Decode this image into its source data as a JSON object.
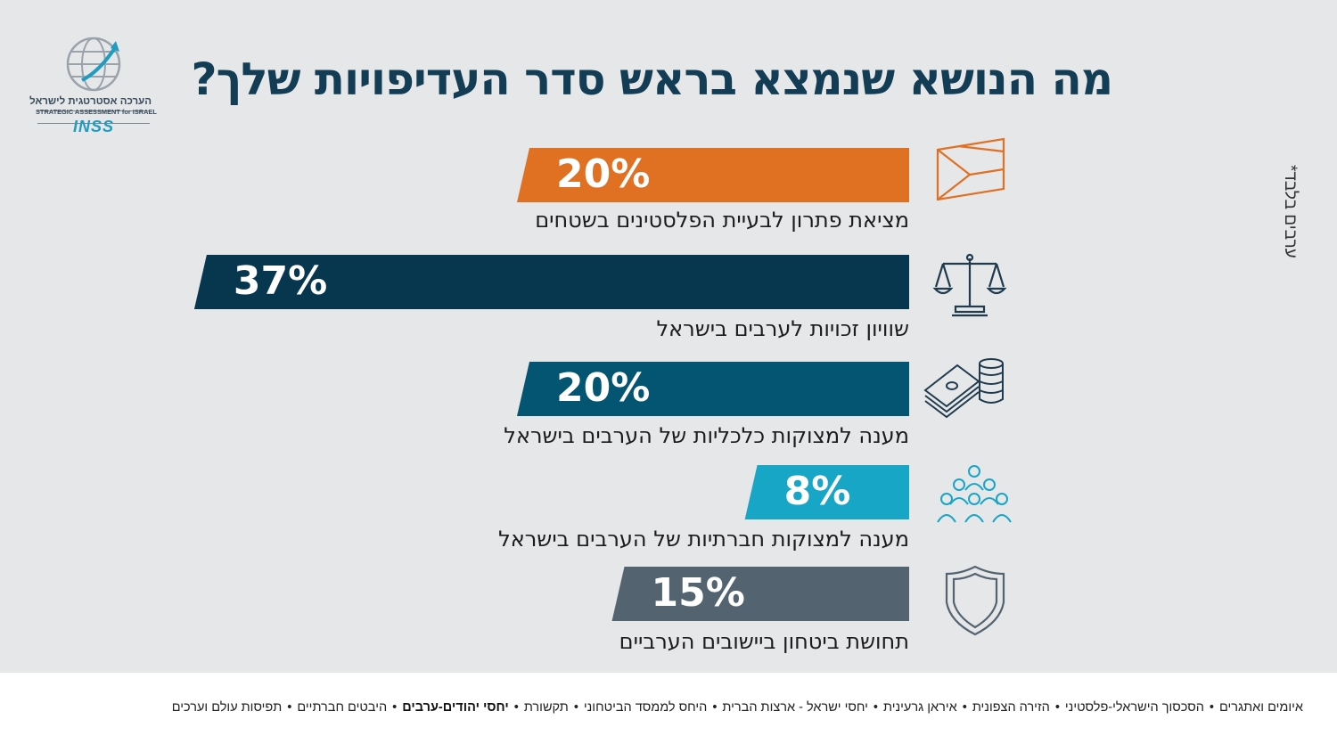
{
  "title": "מה הנושא שנמצא בראש סדר העדיפויות שלך?",
  "side_note": "ערבים בלבד*",
  "logo": {
    "line1": "הערכה אסטרטגית לישראל",
    "line2": "STRATEGIC ASSESSMENT for ISRAEL",
    "brand": "INSS"
  },
  "chart_data": {
    "type": "bar",
    "orientation": "horizontal",
    "title": "מה הנושא שנמצא בראש סדר העדיפויות שלך?",
    "categories": [
      "מציאת פתרון לבעיית הפלסטינים בשטחים",
      "שוויון זכויות לערבים בישראל",
      "מענה למצוקות כלכליות של הערבים בישראל",
      "מענה למצוקות חברתיות של הערבים בישראל",
      "תחושת ביטחון ביישובים הערביים"
    ],
    "values": [
      20,
      37,
      20,
      8,
      15
    ],
    "value_labels": [
      "20%",
      "37%",
      "20%",
      "8%",
      "15%"
    ],
    "colors": [
      "#e07022",
      "#07364f",
      "#045572",
      "#18a6c7",
      "#536470"
    ],
    "icons": [
      "palestinian-flag-icon",
      "scales-of-justice-icon",
      "money-coins-icon",
      "people-group-icon",
      "shield-icon"
    ],
    "xlabel": "",
    "ylabel": ""
  },
  "footer": {
    "topics": [
      {
        "label": "איומים ואתגרים",
        "bold": false
      },
      {
        "label": "הסכסוך הישראלי-פלסטיני",
        "bold": false
      },
      {
        "label": "הזירה הצפונית",
        "bold": false
      },
      {
        "label": "איראן גרעינית",
        "bold": false
      },
      {
        "label": "יחסי ישראל - ארצות הברית",
        "bold": false
      },
      {
        "label": "היחס לממסד הביטחוני",
        "bold": false
      },
      {
        "label": "תקשורת",
        "bold": false
      },
      {
        "label": "יחסי יהודים-ערבים",
        "bold": true
      },
      {
        "label": "היבטים חברתיים",
        "bold": false
      },
      {
        "label": "תפיסות עולם וערכים",
        "bold": false
      }
    ],
    "separator": "•"
  }
}
